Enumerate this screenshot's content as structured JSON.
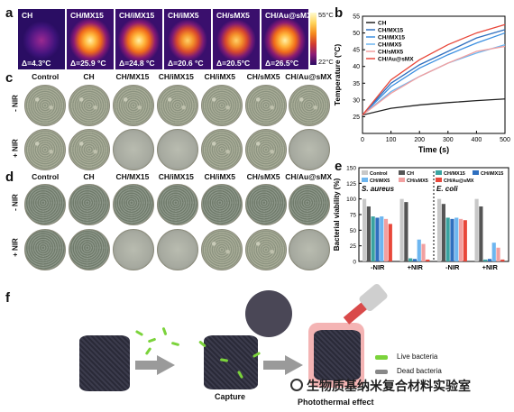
{
  "panels": {
    "a": "a",
    "b": "b",
    "c": "c",
    "d": "d",
    "e": "e",
    "f": "f"
  },
  "thermal": {
    "tiles": [
      {
        "label": "CH",
        "delta": "Δ=4.3°C"
      },
      {
        "label": "CH/MX15",
        "delta": "Δ=25.9 °C"
      },
      {
        "label": "CH/iMX15",
        "delta": "Δ=24.8 °C"
      },
      {
        "label": "CH/iMX5",
        "delta": "Δ=20.6 °C"
      },
      {
        "label": "CH/sMX5",
        "delta": "Δ=20.5°C"
      },
      {
        "label": "CH/Au@sMX",
        "delta": "Δ=26.5°C"
      }
    ],
    "scale_max": "55°C",
    "scale_min": "22°C"
  },
  "dish_columns": [
    "Control",
    "CH",
    "CH/MX15",
    "CH/iMX15",
    "CH/iMX5",
    "CH/sMX5",
    "CH/Au@sMX"
  ],
  "row_labels": {
    "minus_nir": "- NIR",
    "plus_nir": "+ NIR"
  },
  "chart_data": [
    {
      "type": "line",
      "xlabel": "Time (s)",
      "ylabel": "Temperature (°C)",
      "xlim": [
        0,
        500
      ],
      "ylim": [
        20,
        55
      ],
      "xticks": [
        0,
        100,
        200,
        300,
        400,
        500
      ],
      "yticks": [
        25,
        30,
        35,
        40,
        45,
        50,
        55
      ],
      "legend_position": "top-left",
      "series": [
        {
          "name": "CH",
          "color": "#222222",
          "x": [
            0,
            100,
            200,
            300,
            400,
            500
          ],
          "y": [
            25.5,
            27.5,
            28.5,
            29.2,
            29.8,
            30.3
          ]
        },
        {
          "name": "CH/MX15",
          "color": "#2f6fbf",
          "x": [
            0,
            100,
            200,
            300,
            400,
            500
          ],
          "y": [
            25.5,
            35.0,
            40.5,
            44.5,
            48.5,
            51.0
          ]
        },
        {
          "name": "CH/iMX15",
          "color": "#3c8fe0",
          "x": [
            0,
            100,
            200,
            300,
            400,
            500
          ],
          "y": [
            25.5,
            34.0,
            39.5,
            43.5,
            47.0,
            50.0
          ]
        },
        {
          "name": "CH/iMX5",
          "color": "#6db6f0",
          "x": [
            0,
            100,
            200,
            300,
            400,
            500
          ],
          "y": [
            25.5,
            32.5,
            37.0,
            41.0,
            44.0,
            46.5
          ]
        },
        {
          "name": "CH/sMX5",
          "color": "#f2a0a0",
          "x": [
            0,
            100,
            200,
            300,
            400,
            500
          ],
          "y": [
            25.5,
            32.0,
            37.0,
            41.0,
            44.5,
            46.0
          ]
        },
        {
          "name": "CH/Au@sMX",
          "color": "#e8473a",
          "x": [
            0,
            100,
            200,
            300,
            400,
            500
          ],
          "y": [
            25.5,
            36.0,
            42.0,
            46.5,
            50.0,
            52.5
          ]
        }
      ]
    },
    {
      "type": "bar",
      "ylabel": "Bacterial viability (%)",
      "ylim": [
        0,
        150
      ],
      "yticks": [
        0,
        25,
        50,
        75,
        100,
        125,
        150
      ],
      "legend_position": "top",
      "groups": [
        "-NIR",
        "+NIR",
        "-NIR",
        "+NIR"
      ],
      "organisms": [
        "S. aureus",
        "E. coli"
      ],
      "series": [
        {
          "name": "Control",
          "color": "#c8c8c8",
          "values": [
            100,
            100,
            100,
            100
          ]
        },
        {
          "name": "CH",
          "color": "#555555",
          "values": [
            88,
            95,
            92,
            88
          ]
        },
        {
          "name": "CH/MX15",
          "color": "#3aa3a0",
          "values": [
            72,
            5,
            70,
            3
          ]
        },
        {
          "name": "CH/iMX15",
          "color": "#2f6fbf",
          "values": [
            70,
            4,
            68,
            4
          ]
        },
        {
          "name": "CH/iMX5",
          "color": "#6db6f0",
          "values": [
            72,
            35,
            70,
            30
          ]
        },
        {
          "name": "CH/sMX5",
          "color": "#f2a0a0",
          "values": [
            68,
            28,
            68,
            22
          ]
        },
        {
          "name": "CH/Au@sMX",
          "color": "#e8473a",
          "values": [
            60,
            3,
            66,
            3
          ]
        }
      ]
    }
  ],
  "schematic": {
    "capture": "Capture",
    "photothermal": "Photothermal effect",
    "live": "Live bacteria",
    "dead": "Dead bacteria"
  },
  "watermark": "生物质基纳米复合材料实验室"
}
